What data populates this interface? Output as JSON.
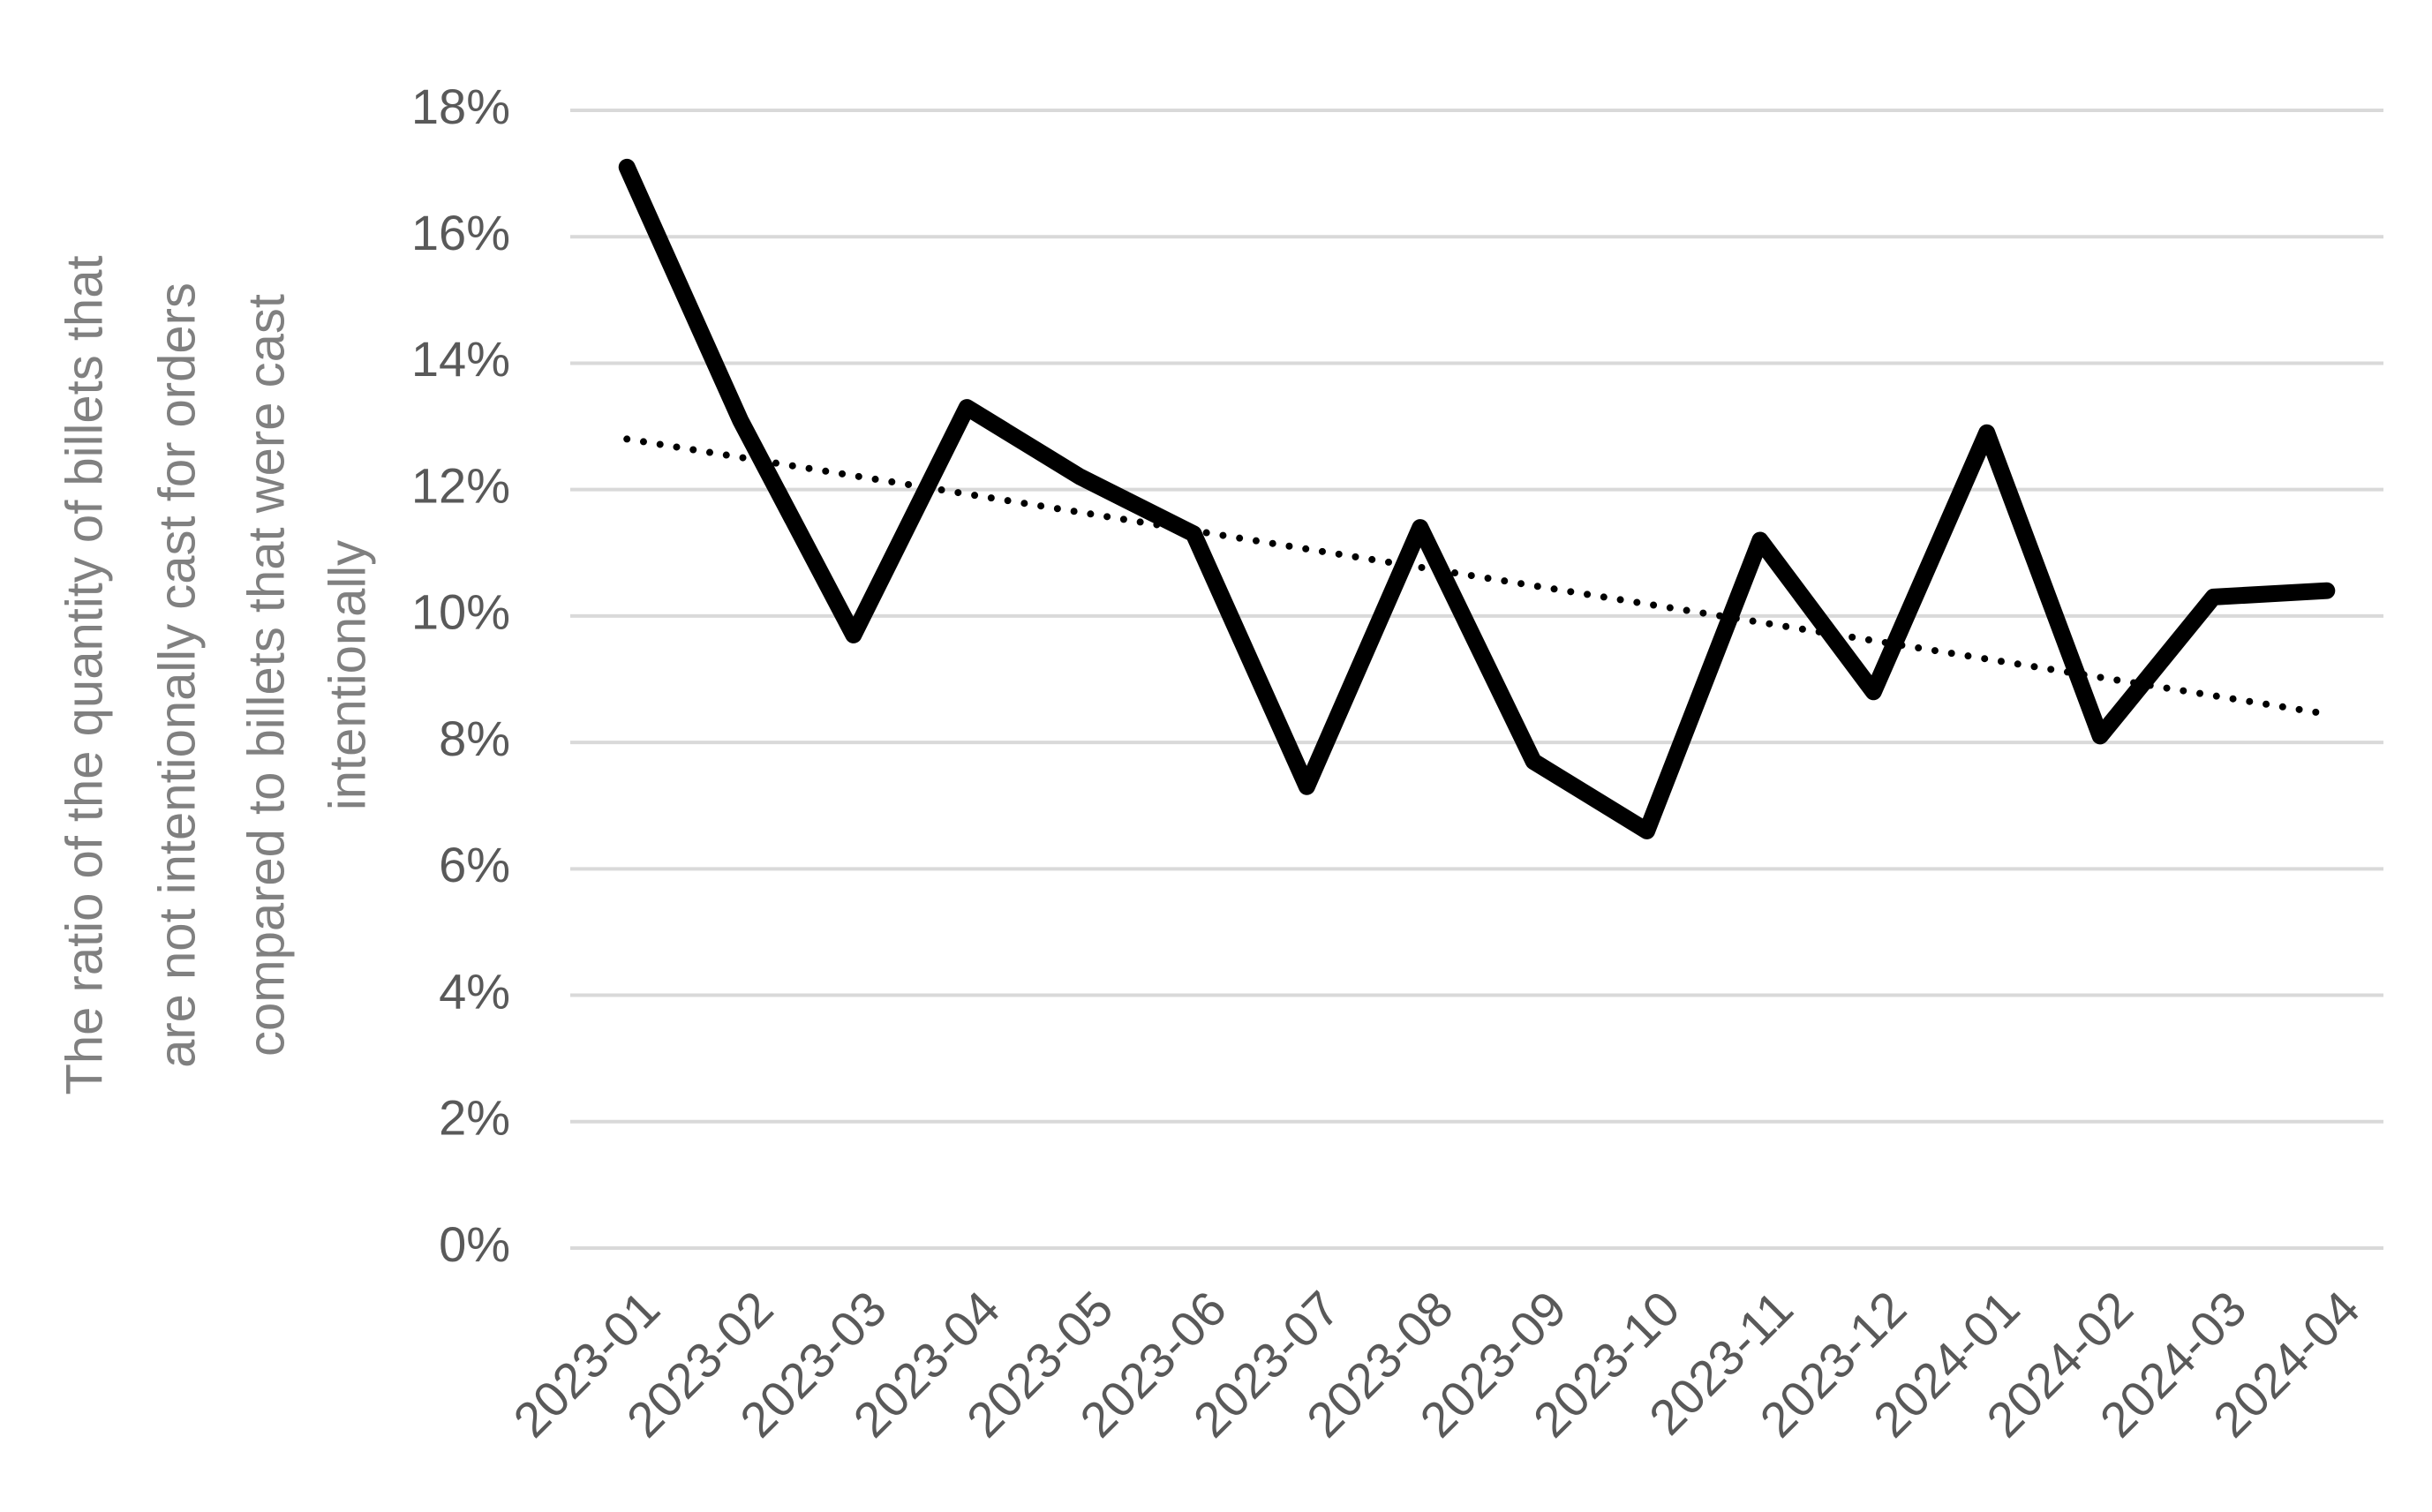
{
  "chart_data": {
    "type": "line",
    "title": "",
    "xlabel": "",
    "ylabel": "The ratio of the quantity of billets that are not intentionally cast for orders compared to billets that were cast intentionally",
    "ylabel_lines": [
      "The ratio of the quantity of billets that",
      "are not intentionally cast for orders",
      "compared to billets that were cast",
      "intentionally"
    ],
    "categories": [
      "2023-01",
      "2023-02",
      "2023-03",
      "2023-04",
      "2023-05",
      "2023-06",
      "2023-07",
      "2023-08",
      "2023-09",
      "2023-10",
      "2023-11",
      "2023-12",
      "2024-01",
      "2024-02",
      "2024-03",
      "2024-04"
    ],
    "series": [
      {
        "values": [
          0.171,
          0.131,
          0.097,
          0.133,
          0.122,
          0.113,
          0.073,
          0.114,
          0.077,
          0.066,
          0.112,
          0.088,
          0.129,
          0.081,
          0.103,
          0.104
        ],
        "color": "#000000",
        "style": "solid"
      },
      {
        "trendline": "linear",
        "values": [
          0.128,
          0.1251,
          0.1222,
          0.1193,
          0.1164,
          0.1135,
          0.1106,
          0.1077,
          0.1048,
          0.1019,
          0.099,
          0.0961,
          0.0932,
          0.0903,
          0.0874,
          0.0845
        ],
        "color": "#000000",
        "style": "dotted"
      }
    ],
    "ylim": [
      0,
      0.18
    ],
    "yticks": [
      "0%",
      "2%",
      "4%",
      "6%",
      "8%",
      "10%",
      "12%",
      "14%",
      "16%",
      "18%"
    ],
    "grid": true,
    "gridline_color": "#d9d9d9",
    "legend": "none"
  }
}
